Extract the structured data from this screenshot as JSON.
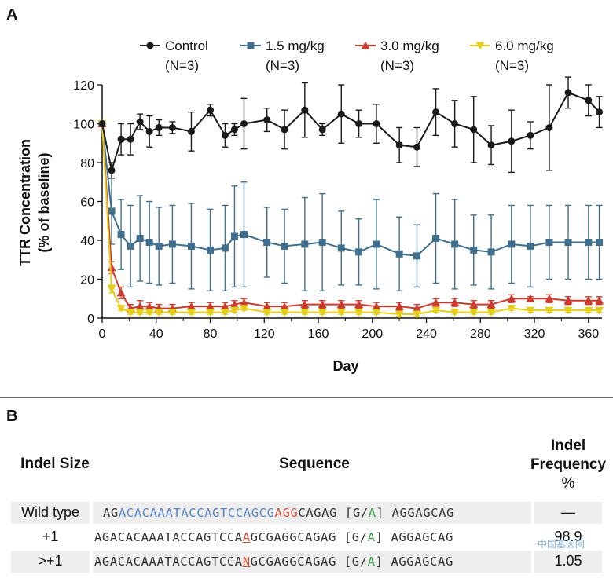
{
  "panel_a_letter": "A",
  "panel_b_letter": "B",
  "colors": {
    "control": "#1a1a1a",
    "low": "#3f6f8c",
    "mid": "#cc3b2f",
    "high": "#e6cf1c",
    "axis": "#111111"
  },
  "chart_data": {
    "type": "line",
    "xlabel": "Day",
    "ylabel": "TTR Concentration",
    "ylabel_sub": "(% of baseline)",
    "xlim": [
      0,
      370
    ],
    "ylim": [
      0,
      120
    ],
    "x_ticks": [
      0,
      40,
      80,
      120,
      160,
      200,
      240,
      280,
      320,
      360
    ],
    "y_ticks": [
      0,
      20,
      40,
      60,
      80,
      100,
      120
    ],
    "grid": false,
    "legend_position": "top",
    "series": [
      {
        "name": "Control",
        "n_label": "(N=3)",
        "marker": "circle",
        "color": "#1a1a1a",
        "x": [
          0,
          7,
          14,
          21,
          28,
          35,
          42,
          52,
          66,
          80,
          91,
          98,
          105,
          122,
          135,
          150,
          163,
          177,
          190,
          203,
          220,
          233,
          247,
          261,
          275,
          288,
          303,
          317,
          331,
          345,
          360,
          368
        ],
        "y": [
          100,
          76,
          92,
          92,
          101,
          96,
          98,
          98,
          96,
          107,
          94,
          97,
          100,
          102,
          97,
          107,
          97,
          105,
          100,
          100,
          89,
          88,
          106,
          100,
          97,
          89,
          91,
          94,
          98,
          116,
          112,
          106
        ],
        "err": [
          0,
          4,
          8,
          8,
          4,
          8,
          4,
          3,
          10,
          3,
          6,
          3,
          13,
          6,
          10,
          14,
          3,
          15,
          7,
          10,
          9,
          10,
          12,
          12,
          17,
          10,
          16,
          7,
          22,
          8,
          8,
          8
        ]
      },
      {
        "name": "1.5 mg/kg",
        "n_label": "(N=3)",
        "marker": "square",
        "color": "#3f6f8c",
        "x": [
          0,
          7,
          14,
          21,
          28,
          35,
          42,
          52,
          66,
          80,
          91,
          98,
          105,
          122,
          135,
          150,
          163,
          177,
          190,
          203,
          220,
          233,
          247,
          261,
          275,
          288,
          303,
          317,
          331,
          345,
          360,
          368
        ],
        "y": [
          100,
          55,
          43,
          37,
          41,
          39,
          37,
          38,
          37,
          35,
          36,
          42,
          43,
          39,
          37,
          38,
          39,
          36,
          34,
          38,
          33,
          32,
          41,
          38,
          35,
          34,
          38,
          37,
          39,
          39,
          39,
          39
        ],
        "err": [
          0,
          17,
          18,
          21,
          22,
          21,
          20,
          20,
          22,
          21,
          22,
          26,
          27,
          18,
          19,
          24,
          25,
          19,
          17,
          23,
          19,
          16,
          23,
          23,
          18,
          19,
          20,
          21,
          19,
          19,
          19,
          19
        ]
      },
      {
        "name": "3.0 mg/kg",
        "n_label": "(N=3)",
        "marker": "triangle-up",
        "color": "#cc3b2f",
        "x": [
          0,
          7,
          14,
          21,
          28,
          35,
          42,
          52,
          66,
          80,
          91,
          98,
          105,
          122,
          135,
          150,
          163,
          177,
          190,
          203,
          220,
          233,
          247,
          261,
          275,
          288,
          303,
          317,
          331,
          345,
          360,
          368
        ],
        "y": [
          100,
          26,
          13,
          5,
          6,
          6,
          5,
          5,
          6,
          6,
          6,
          7,
          8,
          6,
          6,
          7,
          7,
          7,
          7,
          6,
          6,
          5,
          8,
          8,
          7,
          7,
          10,
          10,
          10,
          9,
          9,
          9
        ],
        "err": [
          0,
          3,
          3,
          2,
          3,
          2,
          2,
          2,
          2,
          2,
          2,
          2,
          2,
          2,
          2,
          2,
          2,
          2,
          2,
          2,
          2,
          2,
          2,
          2,
          2,
          2,
          2,
          1,
          2,
          2,
          2,
          2
        ]
      },
      {
        "name": "6.0 mg/kg",
        "n_label": "(N=3)",
        "marker": "triangle-down",
        "color": "#e6cf1c",
        "x": [
          0,
          7,
          14,
          21,
          28,
          35,
          42,
          52,
          66,
          80,
          91,
          98,
          105,
          122,
          135,
          150,
          163,
          177,
          190,
          203,
          220,
          233,
          247,
          261,
          275,
          288,
          303,
          317,
          331,
          345,
          360,
          368
        ],
        "y": [
          100,
          15,
          5,
          3,
          3,
          3,
          3,
          3,
          3,
          3,
          3,
          4,
          5,
          3,
          3,
          3,
          3,
          3,
          3,
          3,
          2,
          2,
          4,
          3,
          3,
          3,
          5,
          4,
          4,
          4,
          4,
          4
        ],
        "err": [
          0,
          2,
          1,
          1,
          1,
          1,
          1,
          1,
          1,
          1,
          1,
          1,
          1,
          1,
          1,
          1,
          1,
          1,
          1,
          1,
          1,
          1,
          1,
          1,
          1,
          1,
          1,
          1,
          1,
          1,
          1,
          1
        ]
      }
    ]
  },
  "table": {
    "header_indel_size": "Indel Size",
    "header_sequence": "Sequence",
    "header_freq_line1": "Indel",
    "header_freq_line2": "Frequency",
    "header_freq_line3": "%",
    "rows": [
      {
        "label": "Wild type",
        "seq": {
          "pre": "AG",
          "guide": "ACACAAATACCAGTCCAGCG",
          "pam": "AGG",
          "mid": "CAGAG [G/",
          "var": "A",
          "post": "] AGGAGCAG"
        },
        "freq": "—"
      },
      {
        "label": "+1",
        "seq": {
          "pre": "AGACACAAATACCAGTCCA",
          "ins": "A",
          "mid": "GCGAGGCAGAG [G/",
          "var": "A",
          "post": "] AGGAGCAG"
        },
        "freq": "98.9"
      },
      {
        "label": ">+1",
        "seq": {
          "pre": "AGACACAAATACCAGTCCA",
          "ins": "N",
          "mid": "GCGAGGCAGAG [G/",
          "var": "A",
          "post": "] AGGAGCAG"
        },
        "freq": "1.05"
      }
    ]
  },
  "watermark": "中国基因网"
}
